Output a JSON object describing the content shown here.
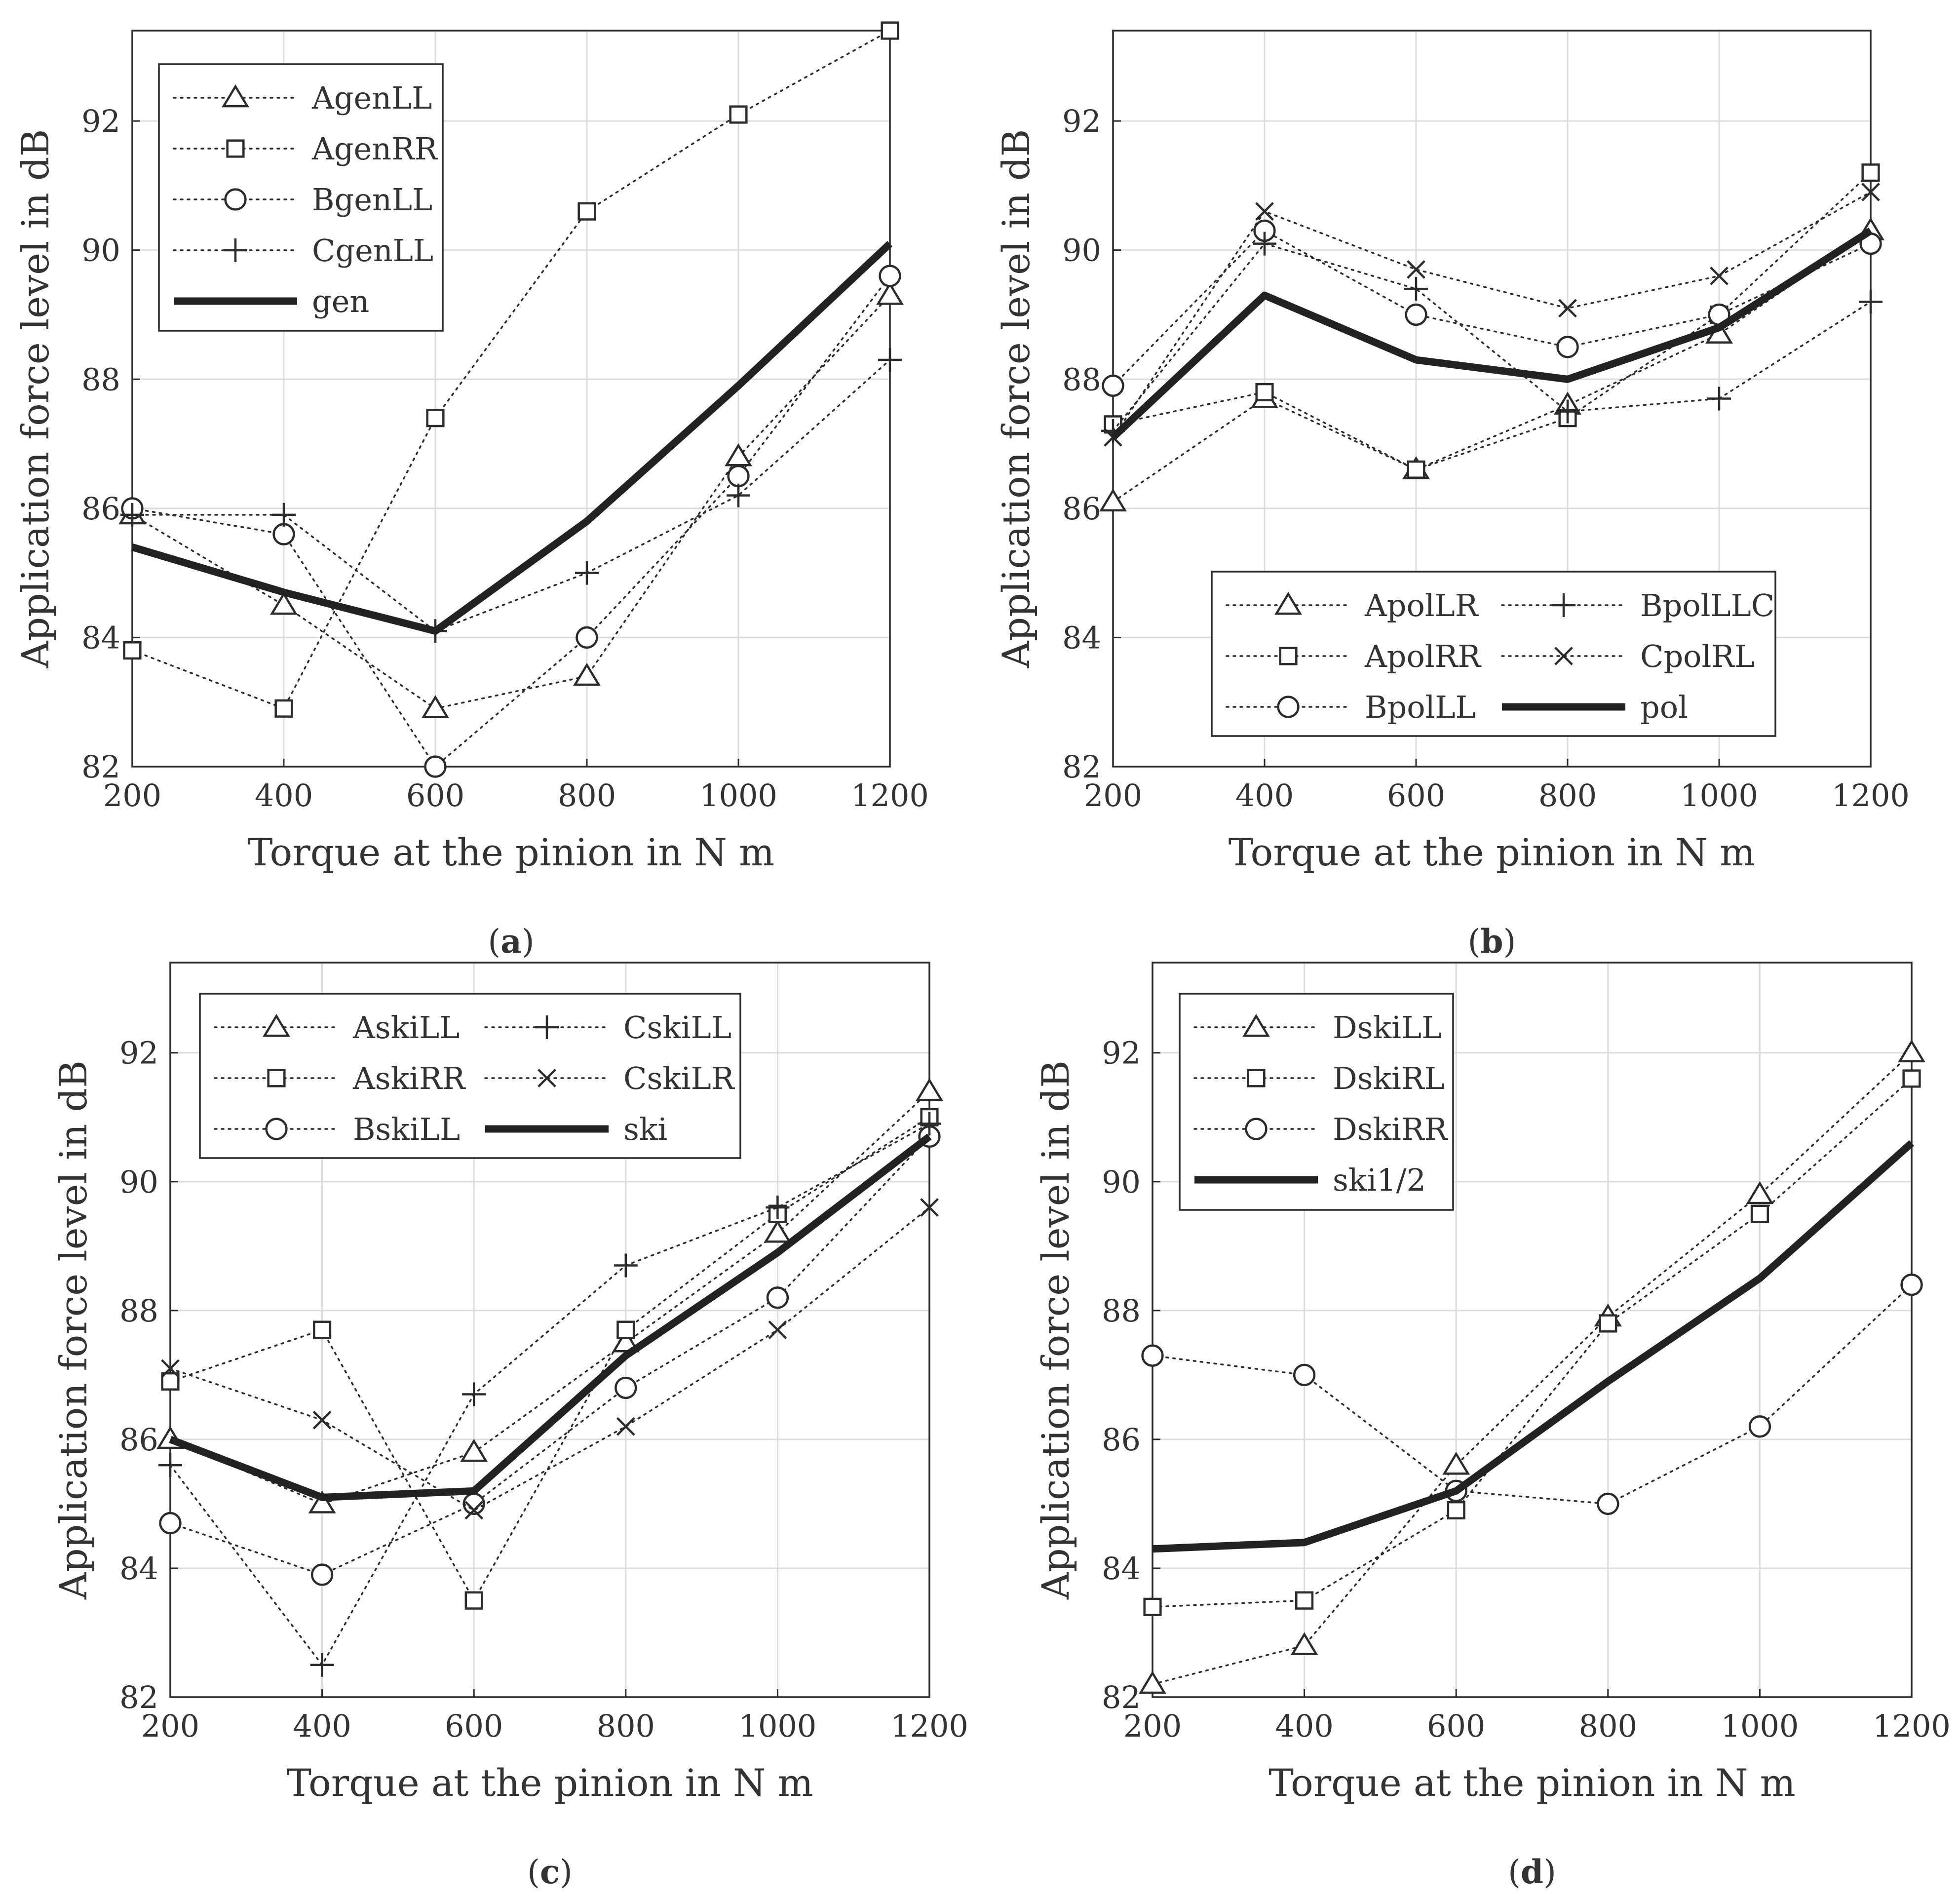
{
  "chart_data": [
    {
      "type": "line",
      "panel": "a",
      "caption_open": "(",
      "caption_letter": "a",
      "caption_close": ")",
      "xlabel": "Torque at the pinion in N m",
      "ylabel": "Application force level in dB",
      "x": [
        200,
        400,
        600,
        800,
        1000,
        1200
      ],
      "xticks": [
        "200",
        "400",
        "600",
        "800",
        "1000",
        "1200"
      ],
      "yticks": [
        "82",
        "84",
        "86",
        "88",
        "90",
        "92"
      ],
      "xlim": [
        200,
        1200
      ],
      "ylim": [
        82,
        93.4
      ],
      "grid": true,
      "legend_position": "top-left",
      "legend_columns": 1,
      "series": [
        {
          "name": "AgenLL",
          "marker": "triangle",
          "style": "dotted",
          "values": [
            85.9,
            84.5,
            82.9,
            83.4,
            86.8,
            89.3
          ]
        },
        {
          "name": "AgenRR",
          "marker": "square",
          "style": "dotted",
          "values": [
            83.8,
            82.9,
            87.4,
            90.6,
            92.1,
            93.4
          ]
        },
        {
          "name": "BgenLL",
          "marker": "circle",
          "style": "dotted",
          "values": [
            86.0,
            85.6,
            82.0,
            84.0,
            86.5,
            89.6
          ]
        },
        {
          "name": "CgenLL",
          "marker": "plus",
          "style": "dotted",
          "values": [
            85.9,
            85.9,
            84.1,
            85.0,
            86.2,
            88.3
          ]
        },
        {
          "name": "gen",
          "marker": "none",
          "style": "thick",
          "values": [
            85.4,
            84.7,
            84.1,
            85.8,
            87.9,
            90.1
          ]
        }
      ]
    },
    {
      "type": "line",
      "panel": "b",
      "caption_open": "(",
      "caption_letter": "b",
      "caption_close": ")",
      "xlabel": "Torque at the pinion in N m",
      "ylabel": "Application force level in dB",
      "x": [
        200,
        400,
        600,
        800,
        1000,
        1200
      ],
      "xticks": [
        "200",
        "400",
        "600",
        "800",
        "1000",
        "1200"
      ],
      "yticks": [
        "82",
        "84",
        "86",
        "88",
        "90",
        "92"
      ],
      "xlim": [
        200,
        1200
      ],
      "ylim": [
        82,
        93.4
      ],
      "grid": true,
      "legend_position": "bottom-right",
      "legend_columns": 2,
      "series": [
        {
          "name": "ApolLR",
          "marker": "triangle",
          "style": "dotted",
          "values": [
            86.1,
            87.7,
            86.6,
            87.6,
            88.7,
            90.3
          ]
        },
        {
          "name": "ApolRR",
          "marker": "square",
          "style": "dotted",
          "values": [
            87.3,
            87.8,
            86.6,
            87.4,
            89.0,
            91.2
          ]
        },
        {
          "name": "BpolLL",
          "marker": "circle",
          "style": "dotted",
          "values": [
            87.9,
            90.3,
            89.0,
            88.5,
            89.0,
            90.1
          ]
        },
        {
          "name": "BpolLLC",
          "marker": "plus",
          "style": "dotted",
          "values": [
            87.2,
            90.1,
            89.4,
            87.5,
            87.7,
            89.2
          ]
        },
        {
          "name": "CpolRL",
          "marker": "x",
          "style": "dotted",
          "values": [
            87.1,
            90.6,
            89.7,
            89.1,
            89.6,
            90.9
          ]
        },
        {
          "name": "pol",
          "marker": "none",
          "style": "thick",
          "values": [
            87.1,
            89.3,
            88.3,
            88.0,
            88.8,
            90.3
          ]
        }
      ]
    },
    {
      "type": "line",
      "panel": "c",
      "caption_open": "(",
      "caption_letter": "c",
      "caption_close": ")",
      "xlabel": "Torque at the pinion in N m",
      "ylabel": "Application force level in dB",
      "x": [
        200,
        400,
        600,
        800,
        1000,
        1200
      ],
      "xticks": [
        "200",
        "400",
        "600",
        "800",
        "1000",
        "1200"
      ],
      "yticks": [
        "82",
        "84",
        "86",
        "88",
        "90",
        "92"
      ],
      "xlim": [
        200,
        1200
      ],
      "ylim": [
        82,
        93.4
      ],
      "grid": true,
      "legend_position": "top-left",
      "legend_columns": 2,
      "series": [
        {
          "name": "AskiLL",
          "marker": "triangle",
          "style": "dotted",
          "values": [
            86.0,
            85.0,
            85.8,
            87.5,
            89.2,
            91.4
          ]
        },
        {
          "name": "AskiRR",
          "marker": "square",
          "style": "dotted",
          "values": [
            86.9,
            87.7,
            83.5,
            87.7,
            89.5,
            91.0
          ]
        },
        {
          "name": "BskiLL",
          "marker": "circle",
          "style": "dotted",
          "values": [
            84.7,
            83.9,
            85.0,
            86.8,
            88.2,
            90.7
          ]
        },
        {
          "name": "CskiLL",
          "marker": "plus",
          "style": "dotted",
          "values": [
            85.6,
            82.5,
            86.7,
            88.7,
            89.6,
            90.9
          ]
        },
        {
          "name": "CskiLR",
          "marker": "x",
          "style": "dotted",
          "values": [
            87.1,
            86.3,
            84.9,
            86.2,
            87.7,
            89.6
          ]
        },
        {
          "name": "ski",
          "marker": "none",
          "style": "thick",
          "values": [
            86.0,
            85.1,
            85.2,
            87.3,
            88.9,
            90.7
          ]
        }
      ]
    },
    {
      "type": "line",
      "panel": "d",
      "caption_open": "(",
      "caption_letter": "d",
      "caption_close": ")",
      "xlabel": "Torque at the pinion in N m",
      "ylabel": "Application force level in dB",
      "x": [
        200,
        400,
        600,
        800,
        1000,
        1200
      ],
      "xticks": [
        "200",
        "400",
        "600",
        "800",
        "1000",
        "1200"
      ],
      "yticks": [
        "82",
        "84",
        "86",
        "88",
        "90",
        "92"
      ],
      "xlim": [
        200,
        1200
      ],
      "ylim": [
        82,
        93.4
      ],
      "grid": true,
      "legend_position": "top-left",
      "legend_columns": 1,
      "series": [
        {
          "name": "DskiLL",
          "marker": "triangle",
          "style": "dotted",
          "values": [
            82.2,
            82.8,
            85.6,
            87.9,
            89.8,
            92.0
          ]
        },
        {
          "name": "DskiRL",
          "marker": "square",
          "style": "dotted",
          "values": [
            83.4,
            83.5,
            84.9,
            87.8,
            89.5,
            91.6
          ]
        },
        {
          "name": "DskiRR",
          "marker": "circle",
          "style": "dotted",
          "values": [
            87.3,
            87.0,
            85.2,
            85.0,
            86.2,
            88.4
          ]
        },
        {
          "name": "ski1/2",
          "marker": "none",
          "style": "thick",
          "values": [
            84.3,
            84.4,
            85.2,
            86.9,
            88.5,
            90.6
          ]
        }
      ]
    }
  ]
}
